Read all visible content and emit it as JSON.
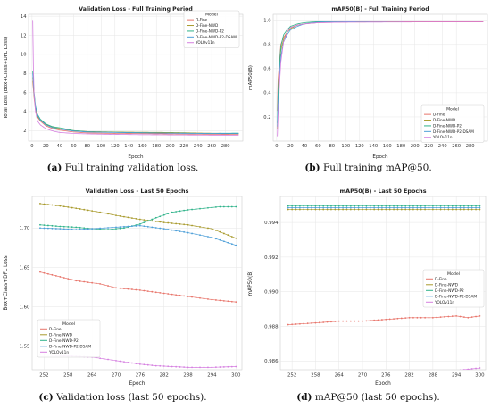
{
  "captions": [
    {
      "label": "(a)",
      "text": " Full training validation loss."
    },
    {
      "label": "(b)",
      "text": " Full training mAP@50."
    },
    {
      "label": "(c)",
      "text": " Validation loss (last 50 epochs)."
    },
    {
      "label": "(d)",
      "text": " mAP@50 (last 50 epochs)."
    }
  ],
  "colors": {
    "D-Fine": "#e8756b",
    "D-Fine-NWD": "#a89a2c",
    "D-Fine-NWD-P2": "#2fb38a",
    "D-Fine-NWD-P2-DSAM": "#4d9fd8",
    "YOLOv11n": "#d57fe0"
  },
  "chart_data": [
    {
      "type": "line",
      "title": "Validation Loss - Full Training Period",
      "xlabel": "Epoch",
      "ylabel": "Total Loss (Box+Class+DFL Loss)",
      "xlim": [
        -5,
        305
      ],
      "ylim": [
        0.9,
        14.2
      ],
      "xticks": [
        0,
        20,
        40,
        60,
        80,
        100,
        120,
        140,
        160,
        180,
        200,
        220,
        240,
        260,
        280
      ],
      "yticks": [
        2,
        4,
        6,
        8,
        10,
        12,
        14
      ],
      "grid": true,
      "legend": {
        "title": "Model",
        "placement": "top-right"
      },
      "series": [
        {
          "name": "D-Fine",
          "points": [
            [
              1,
              7.2
            ],
            [
              3,
              5.4
            ],
            [
              5,
              4.2
            ],
            [
              8,
              3.4
            ],
            [
              12,
              3.0
            ],
            [
              20,
              2.5
            ],
            [
              30,
              2.2
            ],
            [
              40,
              2.05
            ],
            [
              60,
              1.85
            ],
            [
              80,
              1.75
            ],
            [
              120,
              1.7
            ],
            [
              160,
              1.68
            ],
            [
              200,
              1.65
            ],
            [
              250,
              1.62
            ],
            [
              300,
              1.6
            ]
          ]
        },
        {
          "name": "D-Fine-NWD",
          "points": [
            [
              1,
              7.6
            ],
            [
              3,
              5.6
            ],
            [
              5,
              4.4
            ],
            [
              8,
              3.5
            ],
            [
              12,
              3.1
            ],
            [
              20,
              2.65
            ],
            [
              30,
              2.35
            ],
            [
              40,
              2.2
            ],
            [
              60,
              2.0
            ],
            [
              80,
              1.9
            ],
            [
              120,
              1.85
            ],
            [
              160,
              1.82
            ],
            [
              200,
              1.8
            ],
            [
              250,
              1.73
            ],
            [
              300,
              1.69
            ]
          ]
        },
        {
          "name": "D-Fine-NWD-P2",
          "points": [
            [
              1,
              8.2
            ],
            [
              3,
              6.0
            ],
            [
              5,
              4.6
            ],
            [
              8,
              3.7
            ],
            [
              12,
              3.2
            ],
            [
              20,
              2.7
            ],
            [
              30,
              2.4
            ],
            [
              40,
              2.3
            ],
            [
              60,
              2.0
            ],
            [
              80,
              1.88
            ],
            [
              120,
              1.82
            ],
            [
              160,
              1.78
            ],
            [
              200,
              1.74
            ],
            [
              250,
              1.7
            ],
            [
              300,
              1.73
            ]
          ]
        },
        {
          "name": "D-Fine-NWD-P2-DSAM",
          "points": [
            [
              1,
              8.0
            ],
            [
              3,
              5.8
            ],
            [
              5,
              4.5
            ],
            [
              8,
              3.6
            ],
            [
              12,
              3.1
            ],
            [
              20,
              2.6
            ],
            [
              30,
              2.3
            ],
            [
              40,
              2.15
            ],
            [
              60,
              1.95
            ],
            [
              80,
              1.85
            ],
            [
              120,
              1.8
            ],
            [
              160,
              1.76
            ],
            [
              200,
              1.72
            ],
            [
              250,
              1.7
            ],
            [
              300,
              1.68
            ]
          ]
        },
        {
          "name": "YOLOv11n",
          "points": [
            [
              1,
              13.6
            ],
            [
              2,
              8.5
            ],
            [
              3,
              5.8
            ],
            [
              5,
              4.0
            ],
            [
              8,
              3.0
            ],
            [
              12,
              2.6
            ],
            [
              20,
              2.2
            ],
            [
              30,
              1.95
            ],
            [
              40,
              1.8
            ],
            [
              60,
              1.7
            ],
            [
              80,
              1.65
            ],
            [
              120,
              1.6
            ],
            [
              160,
              1.57
            ],
            [
              200,
              1.55
            ],
            [
              250,
              1.53
            ],
            [
              300,
              1.52
            ]
          ]
        }
      ]
    },
    {
      "type": "line",
      "title": "mAP50(B) - Full Training Period",
      "xlabel": "Epoch",
      "ylabel": "mAP50(B)",
      "xlim": [
        -5,
        305
      ],
      "ylim": [
        0.0,
        1.05
      ],
      "xticks": [
        0,
        20,
        40,
        60,
        80,
        100,
        120,
        140,
        160,
        180,
        200,
        220,
        240,
        260,
        280
      ],
      "yticks": [
        0.2,
        0.4,
        0.6,
        0.8,
        1.0
      ],
      "grid": true,
      "legend": {
        "title": "Model",
        "placement": "lower-right"
      },
      "series": [
        {
          "name": "D-Fine",
          "points": [
            [
              1,
              0.25
            ],
            [
              2,
              0.5
            ],
            [
              4,
              0.65
            ],
            [
              6,
              0.8
            ],
            [
              10,
              0.86
            ],
            [
              15,
              0.9
            ],
            [
              20,
              0.94
            ],
            [
              30,
              0.96
            ],
            [
              40,
              0.97
            ],
            [
              60,
              0.98
            ],
            [
              100,
              0.985
            ],
            [
              200,
              0.988
            ],
            [
              300,
              0.989
            ]
          ]
        },
        {
          "name": "D-Fine-NWD",
          "points": [
            [
              1,
              0.1
            ],
            [
              2,
              0.35
            ],
            [
              4,
              0.6
            ],
            [
              6,
              0.75
            ],
            [
              10,
              0.84
            ],
            [
              15,
              0.9
            ],
            [
              20,
              0.93
            ],
            [
              30,
              0.96
            ],
            [
              40,
              0.97
            ],
            [
              60,
              0.985
            ],
            [
              100,
              0.99
            ],
            [
              200,
              0.993
            ],
            [
              300,
              0.995
            ]
          ]
        },
        {
          "name": "D-Fine-NWD-P2",
          "points": [
            [
              1,
              0.15
            ],
            [
              2,
              0.4
            ],
            [
              4,
              0.62
            ],
            [
              6,
              0.78
            ],
            [
              10,
              0.88
            ],
            [
              15,
              0.92
            ],
            [
              20,
              0.95
            ],
            [
              30,
              0.97
            ],
            [
              40,
              0.98
            ],
            [
              60,
              0.99
            ],
            [
              100,
              0.993
            ],
            [
              200,
              0.995
            ],
            [
              300,
              0.995
            ]
          ]
        },
        {
          "name": "D-Fine-NWD-P2-DSAM",
          "points": [
            [
              1,
              0.12
            ],
            [
              2,
              0.3
            ],
            [
              4,
              0.55
            ],
            [
              6,
              0.7
            ],
            [
              10,
              0.82
            ],
            [
              15,
              0.88
            ],
            [
              20,
              0.92
            ],
            [
              30,
              0.95
            ],
            [
              40,
              0.97
            ],
            [
              60,
              0.985
            ],
            [
              100,
              0.99
            ],
            [
              200,
              0.994
            ],
            [
              300,
              0.995
            ]
          ]
        },
        {
          "name": "YOLOv11n",
          "points": [
            [
              1,
              0.04
            ],
            [
              2,
              0.2
            ],
            [
              4,
              0.45
            ],
            [
              6,
              0.65
            ],
            [
              10,
              0.82
            ],
            [
              15,
              0.9
            ],
            [
              20,
              0.94
            ],
            [
              30,
              0.96
            ],
            [
              40,
              0.97
            ],
            [
              60,
              0.98
            ],
            [
              100,
              0.984
            ],
            [
              200,
              0.986
            ],
            [
              300,
              0.986
            ]
          ]
        }
      ]
    },
    {
      "type": "line",
      "title": "Validation Loss - Last 50 Epochs",
      "xlabel": "Epoch",
      "ylabel": "Box+Class+DFL Loss",
      "xlim": [
        249,
        301.5
      ],
      "ylim": [
        1.52,
        1.74
      ],
      "xticks": [
        252,
        258,
        264,
        270,
        276,
        282,
        288,
        294,
        300
      ],
      "yticks": [
        1.55,
        1.6,
        1.65,
        1.7
      ],
      "grid": true,
      "legend": {
        "title": "Model",
        "placement": "lower-left"
      },
      "series": [
        {
          "name": "D-Fine",
          "points": [
            [
              251,
              1.644
            ],
            [
              256,
              1.638
            ],
            [
              260,
              1.633
            ],
            [
              266,
              1.629
            ],
            [
              270,
              1.624
            ],
            [
              276,
              1.621
            ],
            [
              282,
              1.617
            ],
            [
              288,
              1.613
            ],
            [
              294,
              1.609
            ],
            [
              300,
              1.606
            ]
          ]
        },
        {
          "name": "D-Fine-NWD",
          "points": [
            [
              251,
              1.731
            ],
            [
              256,
              1.728
            ],
            [
              260,
              1.725
            ],
            [
              266,
              1.72
            ],
            [
              270,
              1.716
            ],
            [
              276,
              1.711
            ],
            [
              282,
              1.707
            ],
            [
              288,
              1.704
            ],
            [
              294,
              1.699
            ],
            [
              297,
              1.693
            ],
            [
              300,
              1.687
            ]
          ]
        },
        {
          "name": "D-Fine-NWD-P2",
          "points": [
            [
              251,
              1.704
            ],
            [
              256,
              1.702
            ],
            [
              260,
              1.701
            ],
            [
              264,
              1.699
            ],
            [
              268,
              1.698
            ],
            [
              272,
              1.7
            ],
            [
              276,
              1.705
            ],
            [
              280,
              1.713
            ],
            [
              284,
              1.72
            ],
            [
              288,
              1.723
            ],
            [
              292,
              1.725
            ],
            [
              296,
              1.727
            ],
            [
              300,
              1.727
            ]
          ]
        },
        {
          "name": "D-Fine-NWD-P2-DSAM",
          "points": [
            [
              251,
              1.7
            ],
            [
              256,
              1.699
            ],
            [
              260,
              1.698
            ],
            [
              264,
              1.699
            ],
            [
              270,
              1.701
            ],
            [
              276,
              1.703
            ],
            [
              282,
              1.699
            ],
            [
              288,
              1.694
            ],
            [
              294,
              1.688
            ],
            [
              300,
              1.678
            ]
          ]
        },
        {
          "name": "YOLOv11n",
          "points": [
            [
              251,
              1.539
            ],
            [
              256,
              1.538
            ],
            [
              260,
              1.537
            ],
            [
              264,
              1.536
            ],
            [
              268,
              1.533
            ],
            [
              272,
              1.53
            ],
            [
              276,
              1.527
            ],
            [
              280,
              1.525
            ],
            [
              284,
              1.524
            ],
            [
              288,
              1.523
            ],
            [
              294,
              1.523
            ],
            [
              300,
              1.524
            ]
          ]
        }
      ]
    },
    {
      "type": "line",
      "title": "mAP50(B) - Last 50 Epochs",
      "xlabel": "Epoch",
      "ylabel": "mAP50(B)",
      "xlim": [
        249,
        301.5
      ],
      "ylim": [
        0.9855,
        0.9955
      ],
      "xticks": [
        252,
        258,
        264,
        270,
        276,
        282,
        288,
        294,
        300
      ],
      "yticks": [
        0.986,
        0.988,
        0.99,
        0.992,
        0.994
      ],
      "grid": true,
      "legend": {
        "title": "Model",
        "placement": "center-right"
      },
      "series": [
        {
          "name": "D-Fine",
          "points": [
            [
              251,
              0.9881
            ],
            [
              258,
              0.9882
            ],
            [
              264,
              0.9883
            ],
            [
              270,
              0.9883
            ],
            [
              276,
              0.9884
            ],
            [
              282,
              0.9885
            ],
            [
              288,
              0.9885
            ],
            [
              294,
              0.9886
            ],
            [
              297,
              0.9885
            ],
            [
              300,
              0.9886
            ]
          ]
        },
        {
          "name": "D-Fine-NWD",
          "points": [
            [
              251,
              0.99475
            ],
            [
              276,
              0.99475
            ],
            [
              300,
              0.99475
            ]
          ]
        },
        {
          "name": "D-Fine-NWD-P2",
          "points": [
            [
              251,
              0.99495
            ],
            [
              276,
              0.99495
            ],
            [
              300,
              0.99495
            ]
          ]
        },
        {
          "name": "D-Fine-NWD-P2-DSAM",
          "points": [
            [
              251,
              0.99485
            ],
            [
              276,
              0.99485
            ],
            [
              300,
              0.99485
            ]
          ]
        },
        {
          "name": "YOLOv11n",
          "points": [
            [
              251,
              0.98525
            ],
            [
              256,
              0.9852
            ],
            [
              260,
              0.98515
            ],
            [
              264,
              0.9852
            ],
            [
              270,
              0.98525
            ],
            [
              276,
              0.98528
            ],
            [
              282,
              0.9853
            ],
            [
              288,
              0.98535
            ],
            [
              294,
              0.98545
            ],
            [
              300,
              0.9856
            ]
          ]
        }
      ]
    }
  ]
}
